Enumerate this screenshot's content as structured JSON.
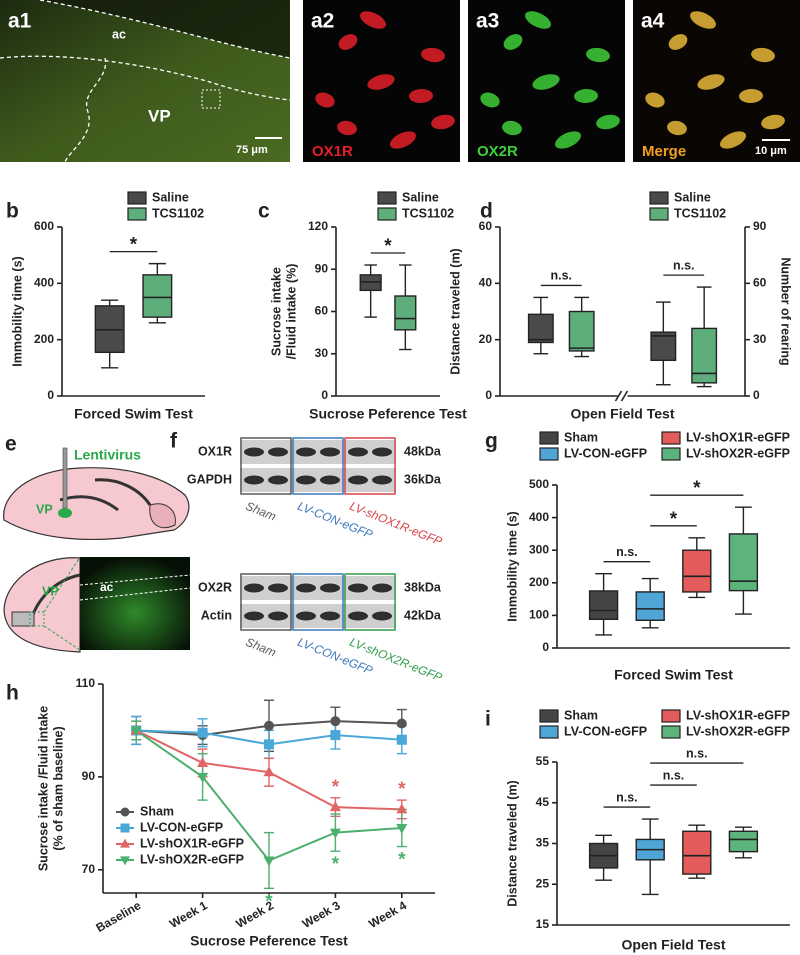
{
  "images": {
    "a1": {
      "label": "a1",
      "regions": [
        "ac",
        "VP"
      ],
      "scale": "75 μm"
    },
    "a2": {
      "label": "a2",
      "stain": "OX1R"
    },
    "a3": {
      "label": "a3",
      "stain": "OX2R"
    },
    "a4": {
      "label": "a4",
      "stain": "Merge",
      "scale": "10 μm"
    }
  },
  "schematic": {
    "label": "e",
    "virus": "Lentivirus",
    "region": "VP",
    "coronal_region": "VP",
    "coronal_ac": "ac"
  },
  "western_blot": {
    "label": "f",
    "blots": [
      {
        "rows": [
          {
            "protein": "OX1R",
            "size": "48kDa"
          },
          {
            "protein": "GAPDH",
            "size": "36kDa"
          }
        ],
        "groups": [
          {
            "name": "Sham",
            "color": "#5a5a5a"
          },
          {
            "name": "LV-CON-eGFP",
            "color": "#3a78bb"
          },
          {
            "name": "LV-shOX1R-eGFP",
            "color": "#d9434b"
          }
        ]
      },
      {
        "rows": [
          {
            "protein": "OX2R",
            "size": "38kDa"
          },
          {
            "protein": "Actin",
            "size": "42kDa"
          }
        ],
        "groups": [
          {
            "name": "Sham",
            "color": "#5a5a5a"
          },
          {
            "name": "LV-CON-eGFP",
            "color": "#3a78bb"
          },
          {
            "name": "LV-shOX2R-eGFP",
            "color": "#2e9e4c"
          }
        ]
      }
    ]
  },
  "chart_data": [
    {
      "type": "box",
      "panel": "b",
      "ylabel": [
        "Immobility time (s)"
      ],
      "xlabel": "Forced Swim Test",
      "ylim": [
        0,
        600
      ],
      "yticks": [
        0,
        200,
        400,
        600
      ],
      "categories": [
        null
      ],
      "series": [
        {
          "name": "Saline",
          "color": "#4a4a4a",
          "min": [
            100
          ],
          "q1": [
            155
          ],
          "median": [
            235
          ],
          "q3": [
            320
          ],
          "max": [
            340
          ]
        },
        {
          "name": "TCS1102",
          "color": "#5eae7b",
          "min": [
            260
          ],
          "q1": [
            280
          ],
          "median": [
            350
          ],
          "q3": [
            430
          ],
          "max": [
            470
          ]
        }
      ],
      "annotations": [
        {
          "text": "*",
          "between": [
            0,
            1
          ]
        }
      ]
    },
    {
      "type": "box",
      "panel": "c",
      "ylabel": [
        "Sucrose intake",
        "/Fluid intake (%)"
      ],
      "xlabel": "Sucrose Peference Test",
      "ylim": [
        0,
        120
      ],
      "yticks": [
        0,
        30,
        60,
        90,
        120
      ],
      "categories": [
        null
      ],
      "series": [
        {
          "name": "Saline",
          "color": "#4a4a4a",
          "min": [
            56
          ],
          "q1": [
            75
          ],
          "median": [
            81
          ],
          "q3": [
            86
          ],
          "max": [
            93
          ]
        },
        {
          "name": "TCS1102",
          "color": "#5eae7b",
          "min": [
            33
          ],
          "q1": [
            47
          ],
          "median": [
            55
          ],
          "q3": [
            71
          ],
          "max": [
            93
          ]
        }
      ],
      "annotations": [
        {
          "text": "*",
          "between": [
            0,
            1
          ]
        }
      ]
    },
    {
      "type": "box",
      "panel": "d",
      "ylabel": [
        "Distance traveled (m)"
      ],
      "y2label": "Number of rearing",
      "xlabel": "Open Field Test",
      "ylim": [
        0,
        60
      ],
      "yticks": [
        0,
        20,
        40,
        60
      ],
      "y2lim": [
        0,
        90
      ],
      "y2ticks": [
        0,
        30,
        60,
        90
      ],
      "categories": [
        null,
        null
      ],
      "category_axes": [
        "y",
        "y2"
      ],
      "axis_break": true,
      "series": [
        {
          "name": "Saline",
          "color": "#4a4a4a",
          "min": [
            15,
            6
          ],
          "q1": [
            19,
            19
          ],
          "median": [
            20,
            32
          ],
          "q3": [
            29,
            34
          ],
          "max": [
            35,
            50
          ]
        },
        {
          "name": "TCS1102",
          "color": "#5eae7b",
          "min": [
            14,
            5
          ],
          "q1": [
            16,
            7
          ],
          "median": [
            17,
            12
          ],
          "q3": [
            30,
            36
          ],
          "max": [
            35,
            58
          ]
        }
      ],
      "annotations": [
        {
          "text": "n.s.",
          "category": 0,
          "between": [
            0,
            1
          ]
        },
        {
          "text": "n.s.",
          "category": 1,
          "between": [
            0,
            1
          ]
        }
      ]
    },
    {
      "type": "box",
      "panel": "g",
      "ylabel": [
        "Immobility time (s)"
      ],
      "xlabel": "Forced Swim Test",
      "ylim": [
        0,
        500
      ],
      "yticks": [
        0,
        100,
        200,
        300,
        400,
        500
      ],
      "categories": [
        null
      ],
      "series": [
        {
          "name": "Sham",
          "color": "#454545",
          "min": [
            40
          ],
          "q1": [
            88
          ],
          "median": [
            115
          ],
          "q3": [
            175
          ],
          "max": [
            228
          ]
        },
        {
          "name": "LV-CON-eGFP",
          "color": "#4ea5d6",
          "min": [
            62
          ],
          "q1": [
            85
          ],
          "median": [
            120
          ],
          "q3": [
            172
          ],
          "max": [
            213
          ]
        },
        {
          "name": "LV-shOX1R-eGFP",
          "color": "#e35b5b",
          "min": [
            155
          ],
          "q1": [
            172
          ],
          "median": [
            220
          ],
          "q3": [
            300
          ],
          "max": [
            338
          ]
        },
        {
          "name": "LV-shOX2R-eGFP",
          "color": "#5cb37b",
          "min": [
            104
          ],
          "q1": [
            176
          ],
          "median": [
            205
          ],
          "q3": [
            350
          ],
          "max": [
            432
          ]
        }
      ],
      "annotations": [
        {
          "text": "n.s.",
          "between": [
            0,
            1
          ]
        },
        {
          "text": "*",
          "between": [
            1,
            2
          ]
        },
        {
          "text": "*",
          "between": [
            1,
            3
          ]
        }
      ]
    },
    {
      "type": "line",
      "panel": "h",
      "ylabel": [
        "Sucrose intake /Fluid intake",
        "(% of sham baseline)"
      ],
      "xlabel": "Sucrose Peference Test",
      "ylim": [
        65,
        110
      ],
      "yticks": [
        70,
        90,
        110
      ],
      "categories": [
        "Baseline",
        "Week 1",
        "Week 2",
        "Week 3",
        "Week 4"
      ],
      "series": [
        {
          "name": "Sham",
          "color": "#555555",
          "marker": "circle",
          "values": [
            100,
            99,
            101,
            102,
            101.5
          ],
          "errors": [
            3,
            2,
            5.5,
            3,
            3
          ]
        },
        {
          "name": "LV-CON-eGFP",
          "color": "#4aa8d8",
          "marker": "square",
          "values": [
            100,
            99.5,
            97,
            99,
            98
          ],
          "errors": [
            3,
            3,
            3,
            3,
            3
          ]
        },
        {
          "name": "LV-shOX1R-eGFP",
          "color": "#e06666",
          "marker": "triangle-up",
          "values": [
            100,
            93,
            91,
            83.5,
            83
          ],
          "errors": [
            2,
            3,
            3,
            2,
            2
          ]
        },
        {
          "name": "LV-shOX2R-eGFP",
          "color": "#4caf6e",
          "marker": "triangle-down",
          "values": [
            100,
            90,
            72,
            78,
            79
          ],
          "errors": [
            2,
            5,
            6,
            4,
            4
          ]
        }
      ],
      "annotations": [
        {
          "text": "*",
          "series": 2,
          "index": 3,
          "side": "above"
        },
        {
          "text": "*",
          "series": 2,
          "index": 4,
          "side": "above"
        },
        {
          "text": "*",
          "series": 3,
          "index": 2,
          "side": "below"
        },
        {
          "text": "*",
          "series": 3,
          "index": 3,
          "side": "below"
        },
        {
          "text": "*",
          "series": 3,
          "index": 4,
          "side": "below"
        }
      ]
    },
    {
      "type": "box",
      "panel": "i",
      "ylabel": [
        "Distance traveled (m)"
      ],
      "xlabel": "Open Field Test",
      "ylim": [
        15,
        55
      ],
      "yticks": [
        15,
        25,
        35,
        45,
        55
      ],
      "categories": [
        null
      ],
      "series": [
        {
          "name": "Sham",
          "color": "#454545",
          "min": [
            26
          ],
          "q1": [
            29
          ],
          "median": [
            32
          ],
          "q3": [
            35
          ],
          "max": [
            37
          ]
        },
        {
          "name": "LV-CON-eGFP",
          "color": "#4ea5d6",
          "min": [
            22.5
          ],
          "q1": [
            31
          ],
          "median": [
            33.5
          ],
          "q3": [
            36
          ],
          "max": [
            41
          ]
        },
        {
          "name": "LV-shOX1R-eGFP",
          "color": "#e35b5b",
          "min": [
            26.5
          ],
          "q1": [
            27.5
          ],
          "median": [
            32
          ],
          "q3": [
            38
          ],
          "max": [
            39.5
          ]
        },
        {
          "name": "LV-shOX2R-eGFP",
          "color": "#5cb37b",
          "min": [
            31.5
          ],
          "q1": [
            33
          ],
          "median": [
            36
          ],
          "q3": [
            38
          ],
          "max": [
            39
          ]
        }
      ],
      "annotations": [
        {
          "text": "n.s.",
          "between": [
            0,
            1
          ]
        },
        {
          "text": "n.s.",
          "between": [
            1,
            2
          ]
        },
        {
          "text": "n.s.",
          "between": [
            1,
            3
          ]
        }
      ]
    }
  ]
}
